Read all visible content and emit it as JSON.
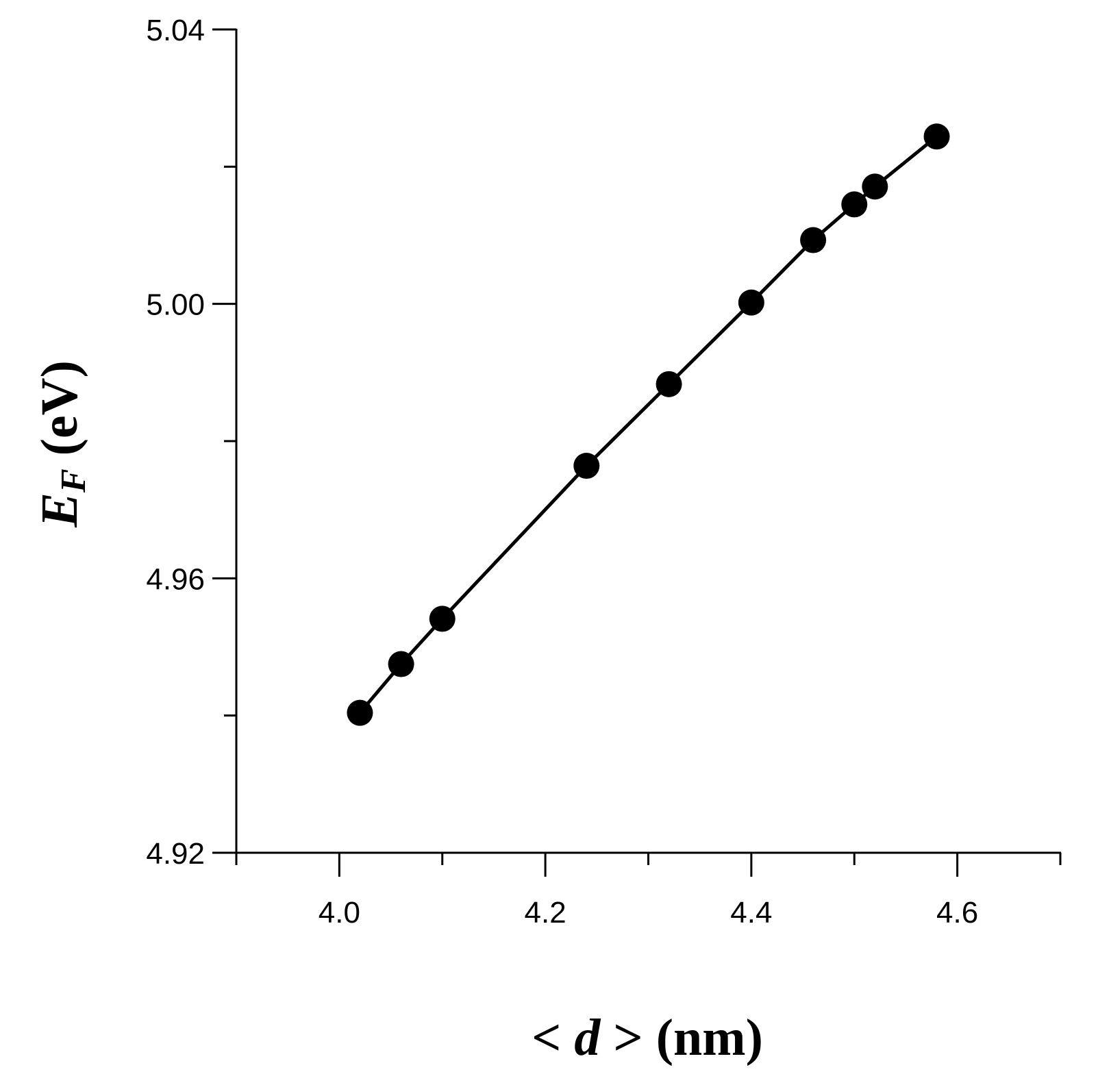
{
  "chart_data": {
    "type": "line",
    "markers": "filled-circle",
    "title": "",
    "xlabel": {
      "parts": [
        "< ",
        "d",
        " > (nm)"
      ]
    },
    "ylabel": {
      "main": "E",
      "subscript": "F",
      "unit": " (eV)"
    },
    "xlim": [
      3.9,
      4.7
    ],
    "ylim": [
      4.92,
      5.04
    ],
    "x_ticks": {
      "major": [
        4.0,
        4.2,
        4.4,
        4.6
      ],
      "minor": [
        3.9,
        4.1,
        4.3,
        4.5,
        4.7
      ],
      "labels": [
        "4.0",
        "4.2",
        "4.4",
        "4.6"
      ]
    },
    "y_ticks": {
      "major": [
        4.92,
        4.96,
        5.0,
        5.04
      ],
      "minor": [
        4.94,
        4.98,
        5.02
      ],
      "labels": [
        "4.92",
        "4.96",
        "5.00",
        "5.04"
      ]
    },
    "grid": false,
    "legend": "none",
    "series": [
      {
        "color": "#000000",
        "x": [
          4.02,
          4.06,
          4.1,
          4.24,
          4.32,
          4.4,
          4.46,
          4.5,
          4.52,
          4.58
        ],
        "y": [
          4.9404,
          4.9475,
          4.9541,
          4.9764,
          4.9883,
          5.0002,
          5.0093,
          5.0145,
          5.0171,
          5.0244
        ]
      }
    ]
  }
}
